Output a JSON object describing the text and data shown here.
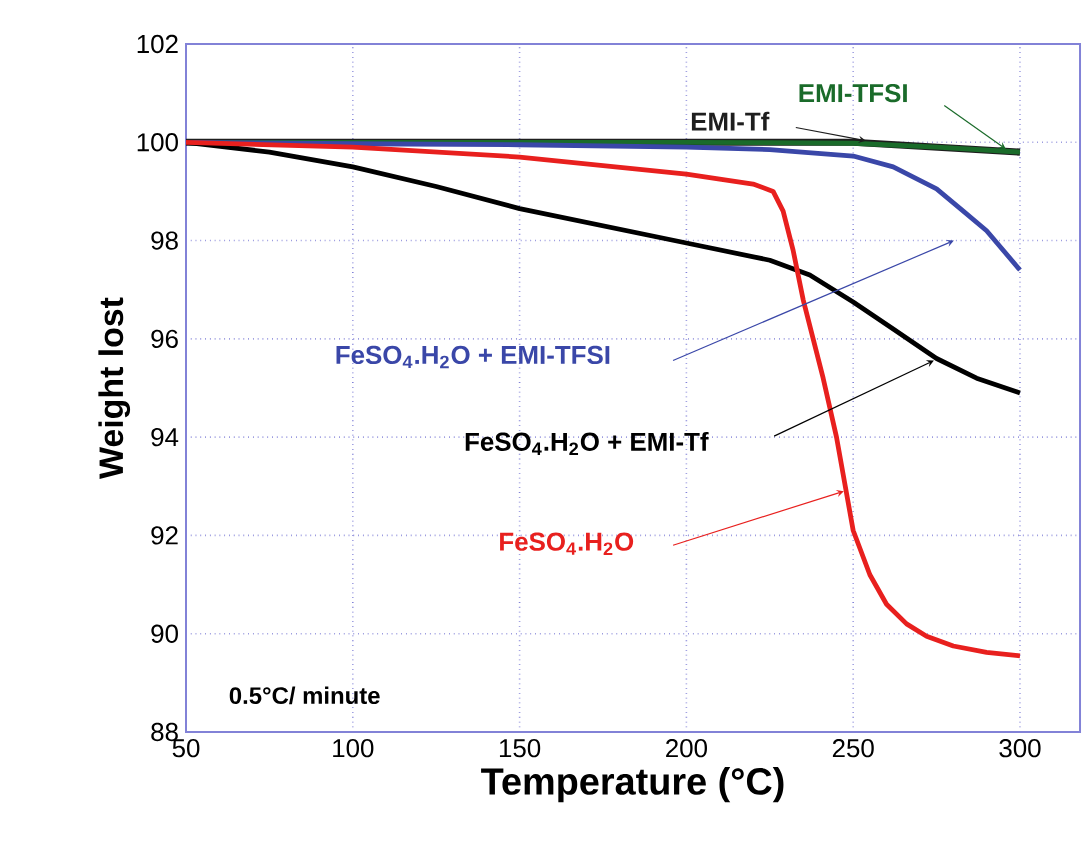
{
  "chart_data": {
    "type": "line",
    "xlabel": "Temperature (°C)",
    "ylabel": "Weight lost",
    "xlim": [
      50,
      318
    ],
    "ylim": [
      88,
      102
    ],
    "xticks": [
      50,
      100,
      150,
      200,
      250,
      300
    ],
    "yticks": [
      88,
      90,
      92,
      94,
      96,
      98,
      100,
      102
    ],
    "grid": true,
    "marker": "none",
    "line_style": "solid",
    "annotations": [
      "0.5°C/ minute"
    ],
    "series": [
      {
        "name": "EMI-Tf",
        "color": "#1e1e1e",
        "x": [
          50,
          100,
          150,
          200,
          250,
          300
        ],
        "values": [
          100,
          100,
          100,
          100,
          100,
          99.8
        ]
      },
      {
        "name": "EMI-TFSI",
        "color": "#1a6b2a",
        "x": [
          50,
          100,
          150,
          200,
          250,
          275,
          300
        ],
        "values": [
          100,
          100,
          100,
          100,
          99.98,
          99.9,
          99.8
        ]
      },
      {
        "name": "FeSO$_{4}$.H$_{2}$O + EMI-TFSI",
        "color": "#3a47a8",
        "x": [
          50,
          100,
          150,
          200,
          225,
          250,
          262,
          275,
          283,
          290,
          295,
          300
        ],
        "values": [
          100,
          99.97,
          99.95,
          99.9,
          99.85,
          99.72,
          99.5,
          99.05,
          98.6,
          98.2,
          97.8,
          97.4
        ]
      },
      {
        "name": "FeSO$_{4}$.H$_{2}$O + EMI-Tf",
        "color": "#000000",
        "x": [
          50,
          75,
          100,
          125,
          150,
          175,
          200,
          225,
          237,
          250,
          262,
          275,
          287,
          300
        ],
        "values": [
          100,
          99.8,
          99.5,
          99.1,
          98.65,
          98.3,
          97.95,
          97.6,
          97.3,
          96.75,
          96.2,
          95.6,
          95.2,
          94.9
        ]
      },
      {
        "name": "FeSO$_{4}$.H$_{2}$O",
        "color": "#e8201e",
        "x": [
          50,
          100,
          150,
          200,
          220,
          226,
          229,
          232,
          235,
          238,
          241,
          245,
          250,
          255,
          260,
          266,
          272,
          280,
          290,
          300
        ],
        "values": [
          100,
          99.9,
          99.7,
          99.35,
          99.15,
          99.0,
          98.6,
          97.8,
          96.8,
          96.0,
          95.2,
          94.0,
          92.1,
          91.2,
          90.6,
          90.2,
          89.95,
          89.75,
          89.62,
          89.55
        ]
      }
    ]
  }
}
